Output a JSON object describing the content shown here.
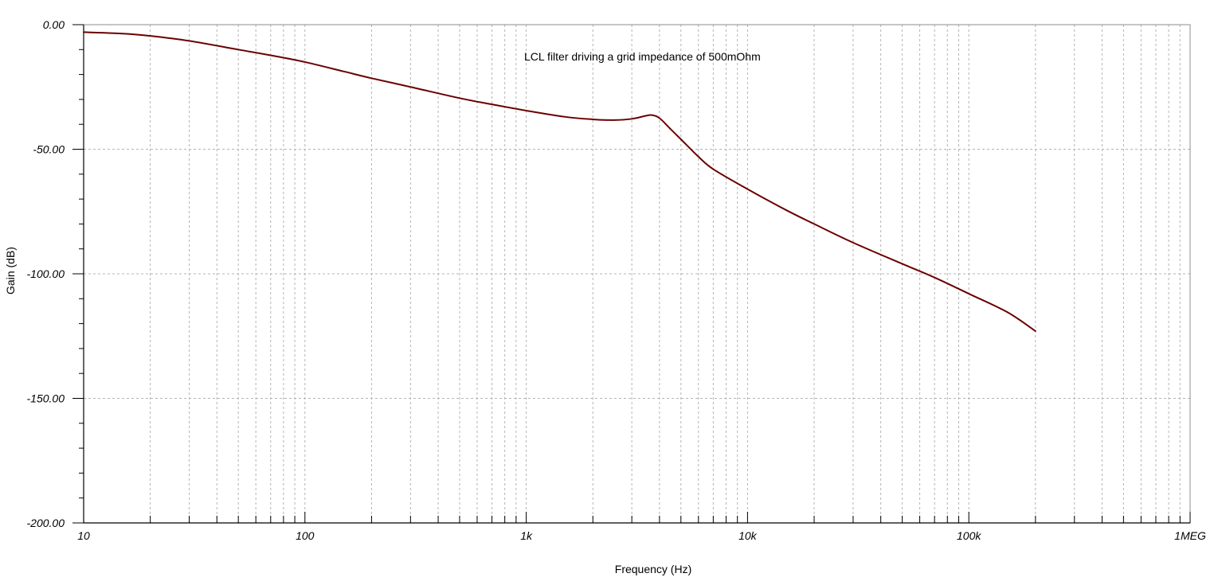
{
  "chart_data": {
    "type": "line",
    "title": "",
    "annotation": "LCL filter driving a grid impedance of 500mOhm",
    "xlabel": "Frequency (Hz)",
    "ylabel": "Gain (dB)",
    "xscale": "log",
    "xlim": [
      10,
      1000000
    ],
    "ylim": [
      -200,
      0
    ],
    "x_ticks": [
      {
        "value": 10,
        "label": "10"
      },
      {
        "value": 100,
        "label": "100"
      },
      {
        "value": 1000,
        "label": "1k"
      },
      {
        "value": 10000,
        "label": "10k"
      },
      {
        "value": 100000,
        "label": "100k"
      },
      {
        "value": 1000000,
        "label": "1MEG"
      }
    ],
    "y_ticks": [
      {
        "value": 0,
        "label": "0.00"
      },
      {
        "value": -50,
        "label": "-50.00"
      },
      {
        "value": -100,
        "label": "-100.00"
      },
      {
        "value": -150,
        "label": "-150.00"
      },
      {
        "value": -200,
        "label": "-200.00"
      }
    ],
    "grid": true,
    "series": [
      {
        "color": "#6b0000",
        "x": [
          10,
          15,
          20,
          30,
          50,
          70,
          100,
          150,
          200,
          300,
          500,
          700,
          1000,
          1500,
          2000,
          2500,
          3000,
          3500,
          3700,
          4000,
          4500,
          5000,
          6000,
          7000,
          10000,
          15000,
          20000,
          30000,
          50000,
          70000,
          100000,
          150000,
          200000
        ],
        "y": [
          -3,
          -3.6,
          -4.5,
          -6.5,
          -10,
          -12.3,
          -15,
          -18.8,
          -21.5,
          -25,
          -29.5,
          -32,
          -34.5,
          -37,
          -38,
          -38.3,
          -37.8,
          -36.5,
          -36.3,
          -37.5,
          -42,
          -46,
          -53,
          -58,
          -66,
          -74.5,
          -80,
          -87.5,
          -96,
          -101.5,
          -108,
          -115.5,
          -123
        ]
      }
    ]
  }
}
